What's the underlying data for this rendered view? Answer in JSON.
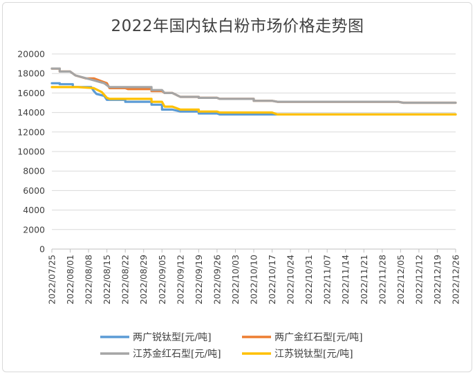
{
  "chart_data": {
    "type": "line",
    "title": "2022年国内钛白粉市场价格走势图",
    "xlabel": "",
    "ylabel": "",
    "ylim": [
      0,
      20000
    ],
    "yticks": [
      0,
      2000,
      4000,
      6000,
      8000,
      10000,
      12000,
      14000,
      16000,
      18000,
      20000
    ],
    "grid": true,
    "legend_position": "bottom",
    "categories": [
      "2022/07/25",
      "2022/08/01",
      "2022/08/08",
      "2022/08/15",
      "2022/08/22",
      "2022/08/29",
      "2022/09/05",
      "2022/09/12",
      "2022/09/19",
      "2022/09/26",
      "2022/10/03",
      "2022/10/10",
      "2022/10/17",
      "2022/10/24",
      "2022/10/31",
      "2022/11/07",
      "2022/11/14",
      "2022/11/21",
      "2022/11/28",
      "2022/12/05",
      "2022/12/12",
      "2022/12/19",
      "2022/12/26"
    ],
    "series": [
      {
        "name": "两广锐钛型[元/吨]",
        "color": "#5b9bd5",
        "points": [
          [
            "2022/07/25",
            17000
          ],
          [
            "2022/07/28",
            17000
          ],
          [
            "2022/07/28",
            16900
          ],
          [
            "2022/08/02",
            16900
          ],
          [
            "2022/08/02",
            16600
          ],
          [
            "2022/08/09",
            16600
          ],
          [
            "2022/08/10",
            16200
          ],
          [
            "2022/08/11",
            15900
          ],
          [
            "2022/08/14",
            15700
          ],
          [
            "2022/08/15",
            15300
          ],
          [
            "2022/08/22",
            15300
          ],
          [
            "2022/08/22",
            15100
          ],
          [
            "2022/09/01",
            15100
          ],
          [
            "2022/09/01",
            14800
          ],
          [
            "2022/09/05",
            14800
          ],
          [
            "2022/09/05",
            14300
          ],
          [
            "2022/09/09",
            14300
          ],
          [
            "2022/09/12",
            14100
          ],
          [
            "2022/09/19",
            14100
          ],
          [
            "2022/09/19",
            13900
          ],
          [
            "2022/09/26",
            13900
          ],
          [
            "2022/09/27",
            13800
          ],
          [
            "2022/12/26",
            13800
          ]
        ]
      },
      {
        "name": "两广金红石型[元/吨]",
        "color": "#ed7d31",
        "points": [
          [
            "2022/07/25",
            18500
          ],
          [
            "2022/07/28",
            18500
          ],
          [
            "2022/07/28",
            18200
          ],
          [
            "2022/08/01",
            18200
          ],
          [
            "2022/08/03",
            17800
          ],
          [
            "2022/08/07",
            17500
          ],
          [
            "2022/08/10",
            17500
          ],
          [
            "2022/08/13",
            17200
          ],
          [
            "2022/08/15",
            17000
          ],
          [
            "2022/08/16",
            16500
          ],
          [
            "2022/08/22",
            16500
          ],
          [
            "2022/08/23",
            16400
          ],
          [
            "2022/09/01",
            16400
          ],
          [
            "2022/09/01",
            16200
          ],
          [
            "2022/09/05",
            16200
          ],
          [
            "2022/09/06",
            16000
          ],
          [
            "2022/09/09",
            16000
          ],
          [
            "2022/09/12",
            15600
          ],
          [
            "2022/09/19",
            15600
          ],
          [
            "2022/09/19",
            15500
          ],
          [
            "2022/09/26",
            15500
          ],
          [
            "2022/09/27",
            15400
          ],
          [
            "2022/10/10",
            15400
          ],
          [
            "2022/10/10",
            15200
          ],
          [
            "2022/10/17",
            15200
          ],
          [
            "2022/10/19",
            15100
          ],
          [
            "2022/12/04",
            15100
          ],
          [
            "2022/12/06",
            15000
          ],
          [
            "2022/12/26",
            15000
          ]
        ]
      },
      {
        "name": "江苏金红石型[元/吨]",
        "color": "#a5a5a5",
        "points": [
          [
            "2022/07/25",
            18500
          ],
          [
            "2022/07/28",
            18500
          ],
          [
            "2022/07/28",
            18200
          ],
          [
            "2022/08/01",
            18200
          ],
          [
            "2022/08/03",
            17800
          ],
          [
            "2022/08/10",
            17300
          ],
          [
            "2022/08/14",
            17000
          ],
          [
            "2022/08/16",
            16600
          ],
          [
            "2022/09/01",
            16600
          ],
          [
            "2022/09/01",
            16300
          ],
          [
            "2022/09/05",
            16300
          ],
          [
            "2022/09/06",
            16000
          ],
          [
            "2022/09/09",
            16000
          ],
          [
            "2022/09/12",
            15600
          ],
          [
            "2022/09/19",
            15600
          ],
          [
            "2022/09/19",
            15500
          ],
          [
            "2022/09/26",
            15500
          ],
          [
            "2022/09/27",
            15400
          ],
          [
            "2022/10/10",
            15400
          ],
          [
            "2022/10/10",
            15200
          ],
          [
            "2022/10/17",
            15200
          ],
          [
            "2022/10/19",
            15100
          ],
          [
            "2022/12/04",
            15100
          ],
          [
            "2022/12/06",
            15000
          ],
          [
            "2022/12/26",
            15000
          ]
        ]
      },
      {
        "name": "江苏锐钛型[元/吨]",
        "color": "#ffc000",
        "points": [
          [
            "2022/07/25",
            16600
          ],
          [
            "2022/08/04",
            16600
          ],
          [
            "2022/08/10",
            16500
          ],
          [
            "2022/08/13",
            16100
          ],
          [
            "2022/08/15",
            15500
          ],
          [
            "2022/08/16",
            15400
          ],
          [
            "2022/09/01",
            15400
          ],
          [
            "2022/09/01",
            15100
          ],
          [
            "2022/09/05",
            15100
          ],
          [
            "2022/09/06",
            14600
          ],
          [
            "2022/09/09",
            14600
          ],
          [
            "2022/09/12",
            14300
          ],
          [
            "2022/09/19",
            14300
          ],
          [
            "2022/09/19",
            14100
          ],
          [
            "2022/09/26",
            14100
          ],
          [
            "2022/09/27",
            14000
          ],
          [
            "2022/10/17",
            14000
          ],
          [
            "2022/10/19",
            13800
          ],
          [
            "2022/12/26",
            13800
          ]
        ]
      }
    ]
  }
}
